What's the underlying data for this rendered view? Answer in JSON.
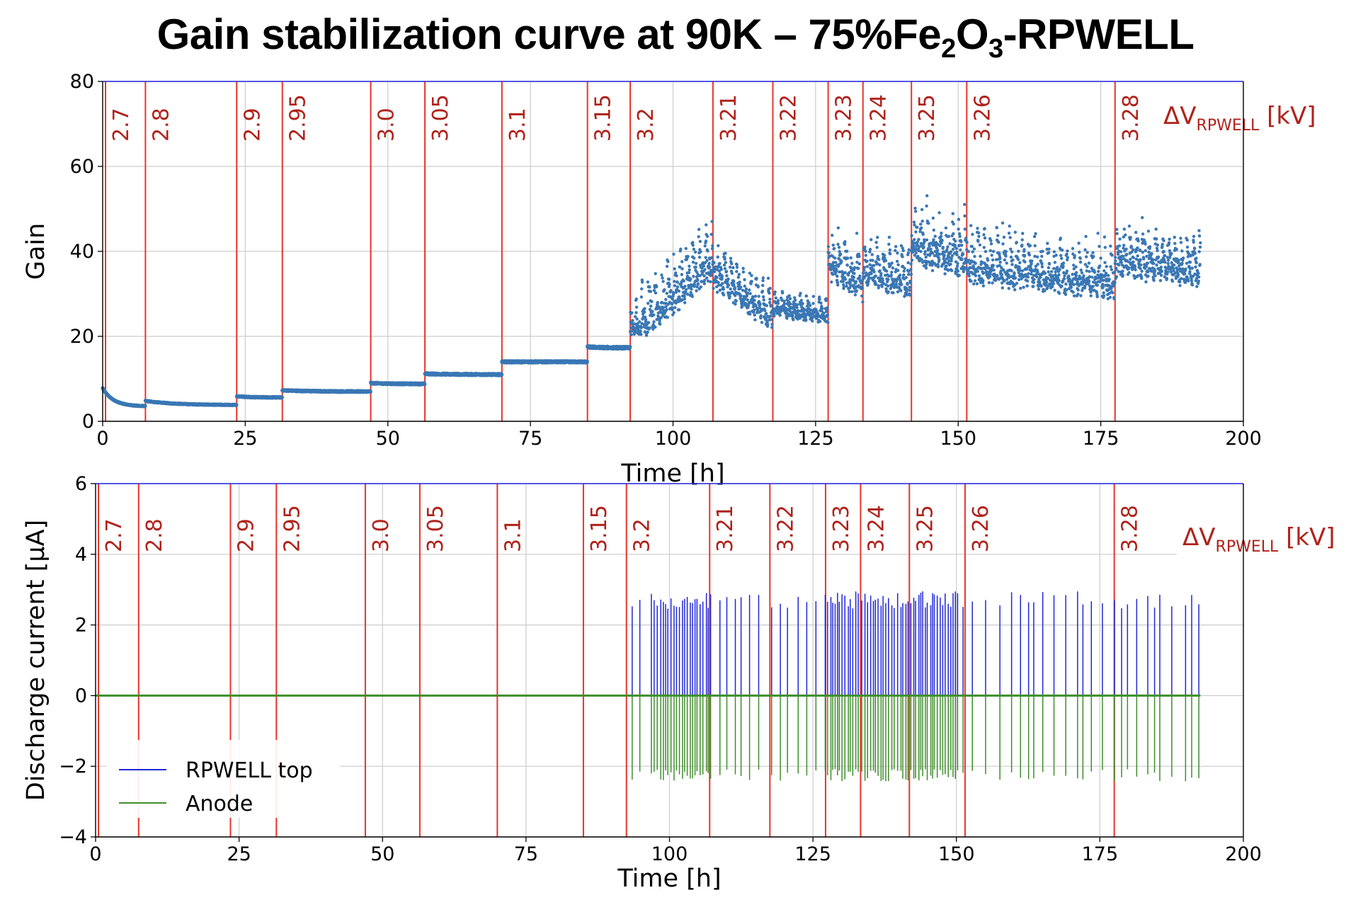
{
  "figure": {
    "title": {
      "prefix": "Gain stabilization curve at 90K – 75%Fe",
      "sub1": "2",
      "mid": "O",
      "sub2": "3",
      "suffix": "-RPWELL"
    },
    "voltage_label": {
      "main": "ΔV",
      "sub": "RPWELL",
      "unit": " [kV]"
    },
    "colors": {
      "red": "#e8342a",
      "voltage_text": "#b0221b",
      "gain_points": "#3a77b4",
      "rpwell_top": "#1f27d6",
      "anode": "#3e8e2b",
      "grid": "#cccccc"
    }
  },
  "chart_data": [
    {
      "type": "scatter",
      "title": "",
      "xlabel": "Time [h]",
      "ylabel": "Gain",
      "xlim": [
        0,
        200
      ],
      "ylim": [
        0,
        80
      ],
      "xticks": [
        0,
        25,
        50,
        75,
        100,
        125,
        150,
        175,
        200
      ],
      "yticks": [
        0,
        20,
        40,
        60,
        80
      ],
      "grid": true,
      "voltage_steps": [
        {
          "t": 0.5,
          "label": "2.7"
        },
        {
          "t": 7.5,
          "label": "2.8"
        },
        {
          "t": 23.5,
          "label": "2.9"
        },
        {
          "t": 31.5,
          "label": "2.95"
        },
        {
          "t": 47,
          "label": "3.0"
        },
        {
          "t": 56.5,
          "label": "3.05"
        },
        {
          "t": 70,
          "label": "3.1"
        },
        {
          "t": 85,
          "label": "3.15"
        },
        {
          "t": 92.5,
          "label": "3.2"
        },
        {
          "t": 107,
          "label": "3.21"
        },
        {
          "t": 117.5,
          "label": "3.22"
        },
        {
          "t": 127.2,
          "label": "3.23"
        },
        {
          "t": 133.3,
          "label": "3.24"
        },
        {
          "t": 141.8,
          "label": "3.25"
        },
        {
          "t": 151.5,
          "label": "3.26"
        },
        {
          "t": 177.5,
          "label": "3.28"
        }
      ],
      "series": [
        {
          "name": "Gain",
          "segments": [
            {
              "t0": 0,
              "t1": 7.5,
              "g0": 7.8,
              "g1": 3.5,
              "noise": 0.2
            },
            {
              "t0": 7.5,
              "t1": 23.5,
              "g0": 4.8,
              "g1": 3.8,
              "noise": 0.2
            },
            {
              "t0": 23.5,
              "t1": 31.5,
              "g0": 5.9,
              "g1": 5.6,
              "noise": 0.25
            },
            {
              "t0": 31.5,
              "t1": 47,
              "g0": 7.3,
              "g1": 7.0,
              "noise": 0.3
            },
            {
              "t0": 47,
              "t1": 56.5,
              "g0": 9.0,
              "g1": 8.8,
              "noise": 0.35
            },
            {
              "t0": 56.5,
              "t1": 70,
              "g0": 11.2,
              "g1": 11.0,
              "noise": 0.4
            },
            {
              "t0": 70,
              "t1": 85,
              "g0": 14.0,
              "g1": 14.0,
              "noise": 0.4
            },
            {
              "t0": 85,
              "t1": 92.5,
              "g0": 17.5,
              "g1": 17.3,
              "noise": 0.5
            },
            {
              "t0": 92.5,
              "t1": 107,
              "g0": 21,
              "g1": 38,
              "noise": 9
            },
            {
              "t0": 107,
              "t1": 117.5,
              "g0": 35,
              "g1": 25,
              "noise": 7
            },
            {
              "t0": 117.5,
              "t1": 127.2,
              "g0": 27,
              "g1": 25,
              "noise": 4
            },
            {
              "t0": 127.2,
              "t1": 133.3,
              "g0": 38,
              "g1": 32,
              "noise": 8
            },
            {
              "t0": 133.3,
              "t1": 141.8,
              "g0": 36,
              "g1": 33,
              "noise": 8
            },
            {
              "t0": 141.8,
              "t1": 151.5,
              "g0": 42,
              "g1": 38,
              "noise": 9
            },
            {
              "t0": 151.5,
              "t1": 177.5,
              "g0": 37,
              "g1": 33,
              "noise": 8
            },
            {
              "t0": 177.5,
              "t1": 192.5,
              "g0": 38,
              "g1": 36,
              "noise": 8
            }
          ]
        }
      ]
    },
    {
      "type": "line",
      "title": "",
      "xlabel": "Time [h]",
      "ylabel": "Discharge current [μA]",
      "xlim": [
        0,
        200
      ],
      "ylim": [
        -4,
        6
      ],
      "xticks": [
        0,
        25,
        50,
        75,
        100,
        125,
        150,
        175,
        200
      ],
      "yticks": [
        -4,
        -2,
        0,
        2,
        4,
        6
      ],
      "grid": true,
      "legend_position": "lower-left",
      "discharge_window": [
        93.5,
        192.5
      ],
      "series": [
        {
          "name": "RPWELL top",
          "baseline": 0,
          "spike_peak": 2.8
        },
        {
          "name": "Anode",
          "baseline": 0,
          "spike_peak": -2.25
        }
      ]
    }
  ]
}
